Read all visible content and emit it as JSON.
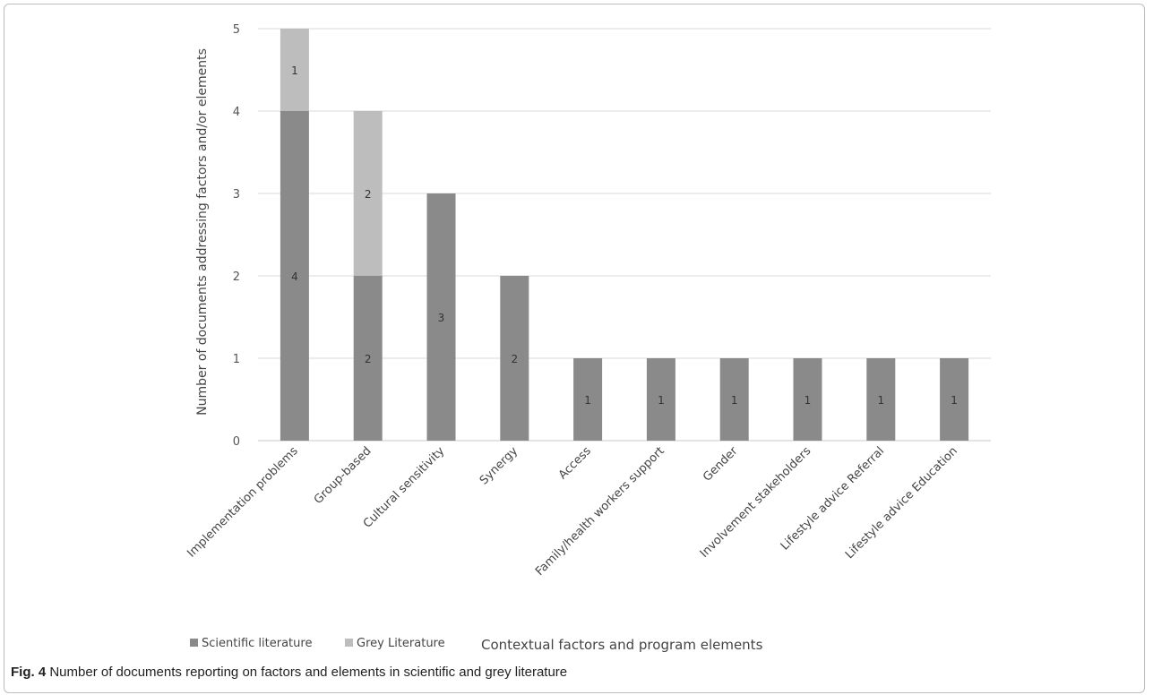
{
  "chart_data": {
    "type": "bar",
    "stacked": true,
    "categories": [
      "Implementation problems",
      "Group-based",
      "Cultural sensitivity",
      "Synergy",
      "Access",
      "Family/health workers support",
      "Gender",
      "Involvement stakeholders",
      "Lifestyle advice Referral",
      "Lifestyle advice Education"
    ],
    "series": [
      {
        "name": "Scientific literature",
        "values": [
          4,
          2,
          3,
          2,
          1,
          1,
          1,
          1,
          1,
          1
        ],
        "color": "#8a8a8a"
      },
      {
        "name": "Grey Literature",
        "values": [
          1,
          2,
          0,
          0,
          0,
          0,
          0,
          0,
          0,
          0
        ],
        "color": "#bdbdbd"
      }
    ],
    "data_labels": [
      [
        "4",
        "2",
        "3",
        "2",
        "1",
        "1",
        "1",
        "1",
        "1",
        "1"
      ],
      [
        "1",
        "2",
        "",
        "",
        "",
        "",
        "",
        "",
        "",
        ""
      ]
    ],
    "title": "",
    "xlabel": "Contextual factors and program elements",
    "ylabel": "Number of documents addressing factors and/or elements",
    "ylim": [
      0,
      5
    ],
    "yticks": [
      "0",
      "1",
      "2",
      "3",
      "4",
      "5"
    ],
    "grid": true,
    "legend_position": "bottom-left"
  },
  "caption": {
    "prefix": "Fig. 4",
    "text": " Number of documents reporting on factors and elements in scientific and grey literature"
  }
}
